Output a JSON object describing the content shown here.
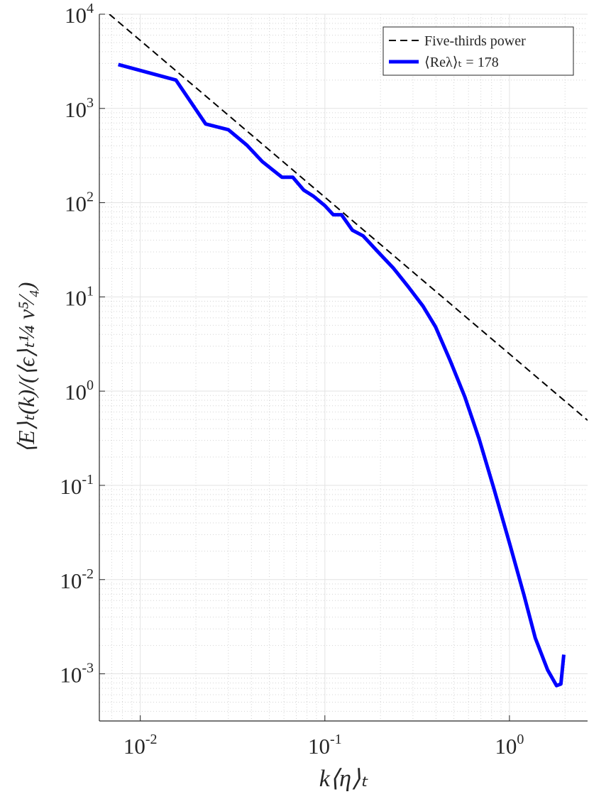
{
  "chart_data": {
    "type": "line",
    "xlabel": "k⟨η⟩ₜ",
    "ylabel": "⟨E⟩ₜ(k)/(⟨ϵ⟩ₜ¼ ν⁵⁄₄)",
    "log_x": true,
    "log_y": true,
    "grid": true,
    "minor_grid": true,
    "legend": "upper right",
    "xlim": [
      0.006,
      2.65
    ],
    "ylim": [
      0.000316,
      10000
    ],
    "xticks": [
      {
        "value": 0.01,
        "label": "10",
        "exponent": "-2"
      },
      {
        "value": 0.1,
        "label": "10",
        "exponent": "-1"
      },
      {
        "value": 1,
        "label": "10",
        "exponent": "0"
      }
    ],
    "yticks": [
      {
        "value": 0.001,
        "label": "10",
        "exponent": "-3"
      },
      {
        "value": 0.01,
        "label": "10",
        "exponent": "-2"
      },
      {
        "value": 0.1,
        "label": "10",
        "exponent": "-1"
      },
      {
        "value": 1,
        "label": "10",
        "exponent": "0"
      },
      {
        "value": 10,
        "label": "10",
        "exponent": "1"
      },
      {
        "value": 100,
        "label": "10",
        "exponent": "2"
      },
      {
        "value": 1000,
        "label": "10",
        "exponent": "3"
      },
      {
        "value": 10000,
        "label": "10",
        "exponent": "4"
      }
    ],
    "series": [
      {
        "name": "Five-thirds power",
        "color": "#000000",
        "dashed": true,
        "x": [
          0.0068,
          2.65
        ],
        "values": [
          10000,
          0.49
        ]
      },
      {
        "name": "⟨Reλ⟩ₜ = 178",
        "color": "#0000ff",
        "dashed": false,
        "x": [
          0.0076,
          0.0156,
          0.0226,
          0.03,
          0.0378,
          0.0458,
          0.0586,
          0.067,
          0.0768,
          0.0867,
          0.1,
          0.111,
          0.123,
          0.141,
          0.161,
          0.194,
          0.236,
          0.284,
          0.34,
          0.398,
          0.479,
          0.573,
          0.685,
          0.82,
          1.0,
          1.2,
          1.38,
          1.61,
          1.8,
          1.9,
          1.97
        ],
        "values": [
          2925,
          2000,
          684,
          594,
          407,
          273,
          186,
          186,
          136,
          117,
          93,
          74.5,
          74.5,
          51,
          44.5,
          30,
          20,
          12.7,
          8,
          4.8,
          2.07,
          0.87,
          0.31,
          0.095,
          0.0245,
          0.0068,
          0.0024,
          0.0011,
          0.00075,
          0.00078,
          0.0016
        ]
      }
    ]
  }
}
